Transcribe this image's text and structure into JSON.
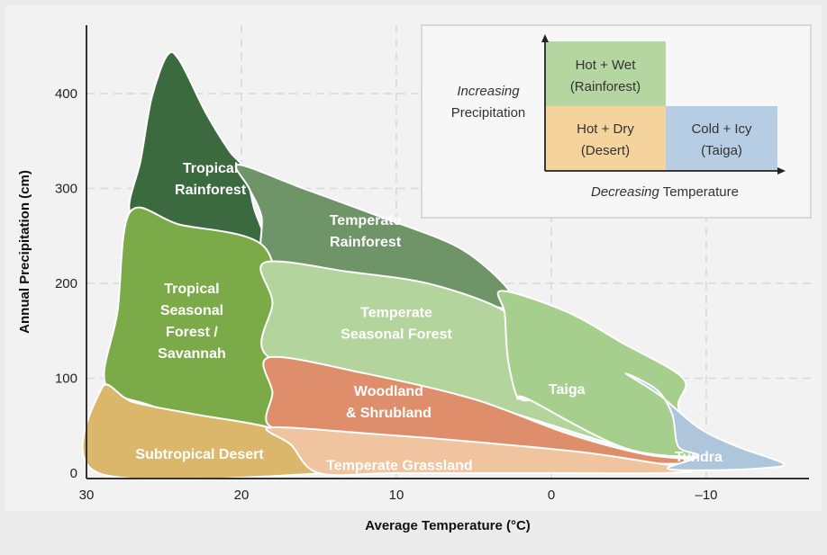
{
  "chart_data": {
    "type": "area",
    "title": "",
    "xlabel": "Average Temperature (°C)",
    "ylabel": "Annual Precipitation (cm)",
    "xlim": [
      30,
      -15
    ],
    "ylim": [
      0,
      450
    ],
    "x_ticks": [
      "30",
      "20",
      "10",
      "0",
      "–10"
    ],
    "y_ticks": [
      "0",
      "100",
      "200",
      "300",
      "400"
    ],
    "grid": true,
    "regions": [
      {
        "name": "Tropical Rainforest",
        "label_lines": [
          "Tropical",
          "Rainforest"
        ],
        "color": "#3c6a3f",
        "boundary": [
          [
            27.2,
            275
          ],
          [
            26.5,
            330
          ],
          [
            25.8,
            395
          ],
          [
            24.8,
            440
          ],
          [
            24,
            435
          ],
          [
            22.3,
            380
          ],
          [
            20.8,
            340
          ],
          [
            19.8,
            320
          ],
          [
            19.2,
            280
          ],
          [
            18.5,
            238
          ],
          [
            21,
            245
          ],
          [
            25,
            260
          ]
        ],
        "label_at": [
          22,
          310
        ]
      },
      {
        "name": "Temperate Rainforest",
        "label_lines": [
          "Temperate",
          "Rainforest"
        ],
        "color": "#6e9467",
        "boundary": [
          [
            20.2,
            325
          ],
          [
            16,
            300
          ],
          [
            11,
            270
          ],
          [
            6,
            238
          ],
          [
            3,
            198
          ],
          [
            2.5,
            175
          ],
          [
            3.5,
            175
          ],
          [
            6,
            188
          ],
          [
            11,
            203
          ],
          [
            15,
            212
          ],
          [
            18.5,
            222
          ],
          [
            18.7,
            270
          ],
          [
            19.5,
            300
          ]
        ],
        "label_at": [
          12,
          255
        ]
      },
      {
        "name": "Tropical Seasonal Forest / Savannah",
        "label_lines": [
          "Tropical",
          "Seasonal",
          "Forest /",
          "Savannah"
        ],
        "color": "#7bab49",
        "boundary": [
          [
            28.8,
            95
          ],
          [
            28,
            170
          ],
          [
            27.2,
            275
          ],
          [
            24,
            262
          ],
          [
            18.5,
            238
          ],
          [
            17.8,
            150
          ],
          [
            17.8,
            48
          ],
          [
            22,
            55
          ],
          [
            26,
            72
          ]
        ],
        "label_at": [
          23.2,
          160
        ]
      },
      {
        "name": "Temperate Seasonal Forest",
        "label_lines": [
          "Temperate",
          "Seasonal Forest"
        ],
        "color": "#b4d49d",
        "boundary": [
          [
            18.5,
            222
          ],
          [
            13,
            212
          ],
          [
            8,
            200
          ],
          [
            3.5,
            175
          ],
          [
            2,
            150
          ],
          [
            1.8,
            105
          ],
          [
            2,
            78
          ],
          [
            0,
            80
          ],
          [
            -2,
            78
          ],
          [
            -6,
            30
          ],
          [
            -12,
            15
          ],
          [
            -6,
            22
          ],
          [
            3,
            66
          ],
          [
            10,
            98
          ],
          [
            18.2,
            122
          ],
          [
            18,
            180
          ]
        ],
        "label_at": [
          10,
          158
        ]
      },
      {
        "name": "Taiga",
        "label_lines": [
          "Taiga"
        ],
        "color": "#a6cf8e",
        "boundary": [
          [
            3.2,
            192
          ],
          [
            -1,
            170
          ],
          [
            -4.5,
            138
          ],
          [
            -8.5,
            100
          ],
          [
            -8.2,
            70
          ],
          [
            -9.2,
            30
          ],
          [
            -10.8,
            18
          ],
          [
            -5,
            25
          ],
          [
            1.5,
            78
          ],
          [
            2.2,
            80
          ],
          [
            2.8,
            120
          ],
          [
            3,
            168
          ]
        ],
        "label_at": [
          -1,
          88
        ]
      },
      {
        "name": "Woodland & Shrubland",
        "label_lines": [
          "Woodland",
          "& Shrubland"
        ],
        "color": "#de8e6a",
        "boundary": [
          [
            18.2,
            122
          ],
          [
            12,
            105
          ],
          [
            5,
            78
          ],
          [
            -1,
            42
          ],
          [
            -6,
            20
          ],
          [
            -10,
            13
          ],
          [
            -7,
            10
          ],
          [
            -2,
            18
          ],
          [
            5,
            28
          ],
          [
            12,
            40
          ],
          [
            18,
            48
          ],
          [
            18,
            85
          ]
        ],
        "label_at": [
          10.5,
          75
        ]
      },
      {
        "name": "Subtropical Desert",
        "label_lines": [
          "Subtropical Desert"
        ],
        "color": "#dbb76b",
        "boundary": [
          [
            29.2,
            0
          ],
          [
            29,
            90
          ],
          [
            27,
            75
          ],
          [
            23,
            62
          ],
          [
            18.2,
            48
          ],
          [
            16.8,
            30
          ],
          [
            15,
            10
          ],
          [
            14.5,
            0
          ]
        ],
        "label_at": [
          22.7,
          20
        ]
      },
      {
        "name": "Temperate Grassland",
        "label_lines": [
          "Temperate Grassland"
        ],
        "color": "#efc49f",
        "boundary": [
          [
            18.2,
            48
          ],
          [
            12,
            42
          ],
          [
            5,
            33
          ],
          [
            -2,
            22
          ],
          [
            -7,
            10
          ],
          [
            -9.5,
            4
          ],
          [
            -7,
            0
          ],
          [
            0,
            0
          ],
          [
            10,
            0
          ],
          [
            15,
            0
          ],
          [
            16.8,
            30
          ]
        ],
        "label_at": [
          9.8,
          8
        ]
      },
      {
        "name": "Tundra",
        "label_lines": [
          "Tundra"
        ],
        "color": "#aec6dc",
        "boundary": [
          [
            -4.8,
            105
          ],
          [
            -7,
            82
          ],
          [
            -9.5,
            48
          ],
          [
            -12,
            28
          ],
          [
            -15,
            10
          ],
          [
            -13.5,
            5
          ],
          [
            -10,
            3
          ],
          [
            -7.5,
            5
          ],
          [
            -9.5,
            18
          ],
          [
            -8.2,
            28
          ],
          [
            -7.8,
            62
          ],
          [
            -6.8,
            88
          ]
        ],
        "label_at": [
          -9.5,
          17
        ]
      }
    ],
    "legend": {
      "placement": "top-right",
      "y_axis_label_italic": "Increasing",
      "y_axis_label_rest": "Precipitation",
      "x_axis_label_italic": "Decreasing",
      "x_axis_label_rest": " Temperature",
      "cells": [
        {
          "lines": [
            "Hot + Wet",
            "(Rainforest)"
          ],
          "color": "#b5d6a0"
        },
        {
          "lines": [
            "Hot + Dry",
            "(Desert)"
          ],
          "color": "#f5d39c"
        },
        {
          "lines": [
            "Cold + Icy",
            "(Taiga)"
          ],
          "color": "#b6cde3"
        }
      ]
    }
  }
}
